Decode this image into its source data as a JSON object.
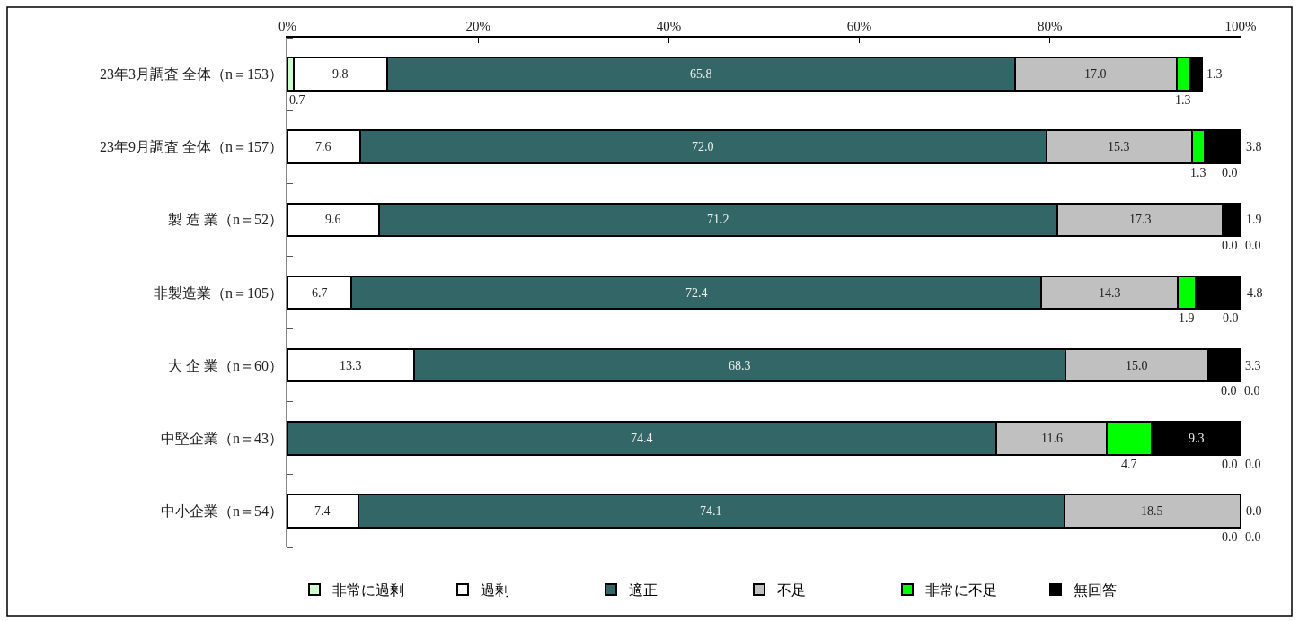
{
  "chart_data": {
    "type": "bar",
    "orientation": "horizontal",
    "stacked": true,
    "categories": [
      "23年3月調査 全体（n＝153）",
      "23年9月調査 全体（n＝157）",
      "製 造 業（n＝52）",
      "非製造業（n＝105）",
      "大 企 業（n＝60）",
      "中堅企業（n＝43）",
      "中小企業（n＝54）"
    ],
    "series": [
      {
        "name": "非常に過剰",
        "color": "#ccffcc",
        "values": [
          0.7,
          0.0,
          0.0,
          0.0,
          0.0,
          0.0,
          0.0
        ],
        "value_labels": [
          "0.7",
          "0.0",
          "0.0",
          "0.0",
          "0.0",
          "0.0",
          "0.0"
        ]
      },
      {
        "name": "過剰",
        "color": "#ffffff",
        "values": [
          9.8,
          7.6,
          9.6,
          6.7,
          13.3,
          0.0,
          7.4
        ],
        "value_labels": [
          "9.8",
          "7.6",
          "9.6",
          "6.7",
          "13.3",
          "0.0",
          "7.4"
        ]
      },
      {
        "name": "適正",
        "color": "#336666",
        "values": [
          65.8,
          72.0,
          71.2,
          72.4,
          68.3,
          74.4,
          74.1
        ],
        "value_labels": [
          "65.8",
          "72.0",
          "71.2",
          "72.4",
          "68.3",
          "74.4",
          "74.1"
        ]
      },
      {
        "name": "不足",
        "color": "#c0c0c0",
        "values": [
          17.0,
          15.3,
          17.3,
          14.3,
          15.0,
          11.6,
          18.5
        ],
        "value_labels": [
          "17.0",
          "15.3",
          "17.3",
          "14.3",
          "15.0",
          "11.6",
          "18.5"
        ]
      },
      {
        "name": "非常に不足",
        "color": "#00ff00",
        "values": [
          1.3,
          1.3,
          0.0,
          1.9,
          0.0,
          4.7,
          0.0
        ],
        "value_labels": [
          "1.3",
          "1.3",
          "0.0",
          "1.9",
          "0.0",
          "4.7",
          "0.0"
        ]
      },
      {
        "name": "無回答",
        "color": "#000000",
        "values": [
          1.3,
          3.8,
          1.9,
          4.8,
          3.3,
          9.3,
          0.0
        ],
        "value_labels": [
          "1.3",
          "3.8",
          "1.9",
          "4.8",
          "3.3",
          "9.3",
          "0.0"
        ]
      }
    ],
    "xlim": [
      0,
      100
    ],
    "xticks": [
      {
        "value": 0,
        "label": "0%"
      },
      {
        "value": 20,
        "label": "20%"
      },
      {
        "value": 40,
        "label": "40%"
      },
      {
        "value": 60,
        "label": "60%"
      },
      {
        "value": 80,
        "label": "80%"
      },
      {
        "value": 100,
        "label": "100%"
      }
    ],
    "legend": "bottom",
    "grid": false
  }
}
